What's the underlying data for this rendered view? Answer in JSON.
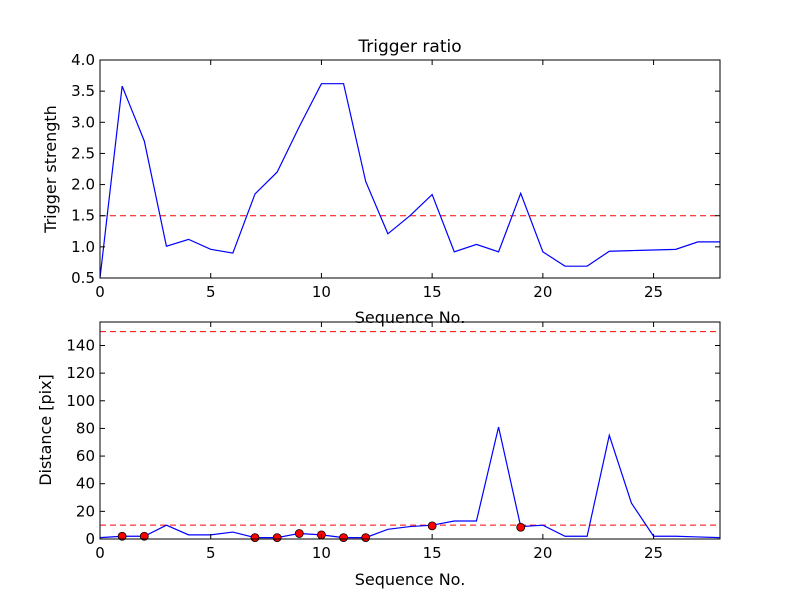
{
  "chart_data": [
    {
      "type": "line",
      "title": "Trigger ratio",
      "xlabel": "Sequence No.",
      "ylabel": "Trigger strength",
      "xlim": [
        0,
        28
      ],
      "ylim": [
        0.5,
        4.0
      ],
      "xticks": [
        0,
        5,
        10,
        15,
        20,
        25
      ],
      "xtick_labels": [
        "0",
        "5",
        "10",
        "15",
        "20",
        "25"
      ],
      "yticks": [
        0.5,
        1.0,
        1.5,
        2.0,
        2.5,
        3.0,
        3.5,
        4.0
      ],
      "ytick_labels": [
        "0.5",
        "1.0",
        "1.5",
        "2.0",
        "2.5",
        "3.0",
        "3.5",
        "4.0"
      ],
      "series": [
        {
          "color": "#0000ff",
          "x": [
            0,
            1,
            2,
            3,
            4,
            5,
            6,
            7,
            8,
            9,
            10,
            11,
            12,
            13,
            14,
            15,
            16,
            17,
            18,
            19,
            20,
            21,
            22,
            23,
            24,
            25,
            26,
            27,
            28
          ],
          "values": [
            0.5,
            3.58,
            2.7,
            1.01,
            1.12,
            0.96,
            0.9,
            1.85,
            2.2,
            2.93,
            3.62,
            3.62,
            2.05,
            1.21,
            1.5,
            1.84,
            0.92,
            1.04,
            0.92,
            1.86,
            0.92,
            0.69,
            0.69,
            0.93,
            0.94,
            0.95,
            0.96,
            1.08,
            1.08
          ]
        }
      ],
      "threshold": {
        "value": 1.5,
        "color": "#ff0000",
        "style": "dashed"
      },
      "grid": false,
      "legend": "none"
    },
    {
      "type": "line",
      "title": "",
      "xlabel": "Sequence No.",
      "ylabel": "Distance [pix]",
      "xlim": [
        0,
        28
      ],
      "ylim": [
        0,
        157
      ],
      "xticks": [
        0,
        5,
        10,
        15,
        20,
        25
      ],
      "xtick_labels": [
        "0",
        "5",
        "10",
        "15",
        "20",
        "25"
      ],
      "yticks": [
        0,
        20,
        40,
        60,
        80,
        100,
        120,
        140
      ],
      "ytick_labels": [
        "0",
        "20",
        "40",
        "60",
        "80",
        "100",
        "120",
        "140"
      ],
      "series": [
        {
          "color": "#0000ff",
          "x": [
            0,
            1,
            2,
            3,
            4,
            5,
            6,
            7,
            8,
            9,
            10,
            11,
            12,
            13,
            14,
            15,
            16,
            17,
            18,
            19,
            20,
            21,
            22,
            23,
            24,
            25,
            26,
            27,
            28
          ],
          "values": [
            1,
            2,
            2,
            10,
            3,
            3,
            5,
            1,
            1,
            4,
            3,
            1,
            1,
            7,
            9,
            10,
            13,
            13,
            81,
            9,
            10,
            2,
            2,
            75,
            26,
            2,
            2,
            1.5,
            1
          ]
        }
      ],
      "markers": {
        "color": "#ff0000",
        "x": [
          1,
          2,
          7,
          8,
          9,
          10,
          11,
          12,
          15,
          19
        ],
        "values": [
          2,
          2,
          1,
          1,
          4,
          3,
          1,
          1,
          9.5,
          8.5
        ]
      },
      "thresholds": [
        {
          "value": 150,
          "color": "#ff0000",
          "style": "dashed"
        },
        {
          "value": 10,
          "color": "#ff0000",
          "style": "dashed"
        }
      ],
      "grid": false,
      "legend": "none"
    }
  ]
}
